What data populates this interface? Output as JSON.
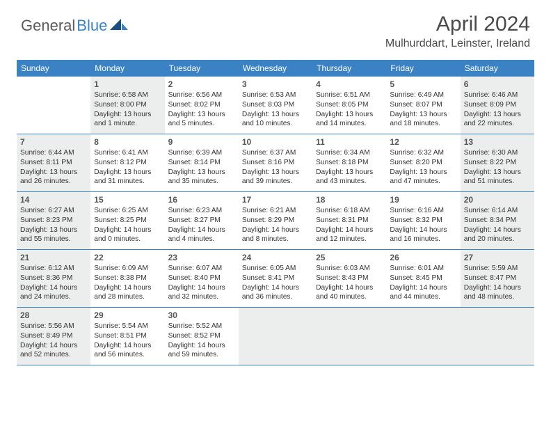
{
  "brand": {
    "part1": "General",
    "part2": "Blue"
  },
  "title": "April 2024",
  "location": "Mulhurddart, Leinster, Ireland",
  "colors": {
    "header_bg": "#3b82c4",
    "header_text": "#ffffff",
    "shaded_cell": "#eceded",
    "page_bg": "#ffffff",
    "text": "#333333",
    "title_text": "#4a4a4a"
  },
  "weekdays": [
    "Sunday",
    "Monday",
    "Tuesday",
    "Wednesday",
    "Thursday",
    "Friday",
    "Saturday"
  ],
  "weeks": [
    [
      {
        "num": "",
        "shaded": false,
        "sunrise": "",
        "sunset": "",
        "daylight": ""
      },
      {
        "num": "1",
        "shaded": true,
        "sunrise": "Sunrise: 6:58 AM",
        "sunset": "Sunset: 8:00 PM",
        "daylight": "Daylight: 13 hours and 1 minute."
      },
      {
        "num": "2",
        "shaded": false,
        "sunrise": "Sunrise: 6:56 AM",
        "sunset": "Sunset: 8:02 PM",
        "daylight": "Daylight: 13 hours and 5 minutes."
      },
      {
        "num": "3",
        "shaded": false,
        "sunrise": "Sunrise: 6:53 AM",
        "sunset": "Sunset: 8:03 PM",
        "daylight": "Daylight: 13 hours and 10 minutes."
      },
      {
        "num": "4",
        "shaded": false,
        "sunrise": "Sunrise: 6:51 AM",
        "sunset": "Sunset: 8:05 PM",
        "daylight": "Daylight: 13 hours and 14 minutes."
      },
      {
        "num": "5",
        "shaded": false,
        "sunrise": "Sunrise: 6:49 AM",
        "sunset": "Sunset: 8:07 PM",
        "daylight": "Daylight: 13 hours and 18 minutes."
      },
      {
        "num": "6",
        "shaded": true,
        "sunrise": "Sunrise: 6:46 AM",
        "sunset": "Sunset: 8:09 PM",
        "daylight": "Daylight: 13 hours and 22 minutes."
      }
    ],
    [
      {
        "num": "7",
        "shaded": true,
        "sunrise": "Sunrise: 6:44 AM",
        "sunset": "Sunset: 8:11 PM",
        "daylight": "Daylight: 13 hours and 26 minutes."
      },
      {
        "num": "8",
        "shaded": false,
        "sunrise": "Sunrise: 6:41 AM",
        "sunset": "Sunset: 8:12 PM",
        "daylight": "Daylight: 13 hours and 31 minutes."
      },
      {
        "num": "9",
        "shaded": false,
        "sunrise": "Sunrise: 6:39 AM",
        "sunset": "Sunset: 8:14 PM",
        "daylight": "Daylight: 13 hours and 35 minutes."
      },
      {
        "num": "10",
        "shaded": false,
        "sunrise": "Sunrise: 6:37 AM",
        "sunset": "Sunset: 8:16 PM",
        "daylight": "Daylight: 13 hours and 39 minutes."
      },
      {
        "num": "11",
        "shaded": false,
        "sunrise": "Sunrise: 6:34 AM",
        "sunset": "Sunset: 8:18 PM",
        "daylight": "Daylight: 13 hours and 43 minutes."
      },
      {
        "num": "12",
        "shaded": false,
        "sunrise": "Sunrise: 6:32 AM",
        "sunset": "Sunset: 8:20 PM",
        "daylight": "Daylight: 13 hours and 47 minutes."
      },
      {
        "num": "13",
        "shaded": true,
        "sunrise": "Sunrise: 6:30 AM",
        "sunset": "Sunset: 8:22 PM",
        "daylight": "Daylight: 13 hours and 51 minutes."
      }
    ],
    [
      {
        "num": "14",
        "shaded": true,
        "sunrise": "Sunrise: 6:27 AM",
        "sunset": "Sunset: 8:23 PM",
        "daylight": "Daylight: 13 hours and 55 minutes."
      },
      {
        "num": "15",
        "shaded": false,
        "sunrise": "Sunrise: 6:25 AM",
        "sunset": "Sunset: 8:25 PM",
        "daylight": "Daylight: 14 hours and 0 minutes."
      },
      {
        "num": "16",
        "shaded": false,
        "sunrise": "Sunrise: 6:23 AM",
        "sunset": "Sunset: 8:27 PM",
        "daylight": "Daylight: 14 hours and 4 minutes."
      },
      {
        "num": "17",
        "shaded": false,
        "sunrise": "Sunrise: 6:21 AM",
        "sunset": "Sunset: 8:29 PM",
        "daylight": "Daylight: 14 hours and 8 minutes."
      },
      {
        "num": "18",
        "shaded": false,
        "sunrise": "Sunrise: 6:18 AM",
        "sunset": "Sunset: 8:31 PM",
        "daylight": "Daylight: 14 hours and 12 minutes."
      },
      {
        "num": "19",
        "shaded": false,
        "sunrise": "Sunrise: 6:16 AM",
        "sunset": "Sunset: 8:32 PM",
        "daylight": "Daylight: 14 hours and 16 minutes."
      },
      {
        "num": "20",
        "shaded": true,
        "sunrise": "Sunrise: 6:14 AM",
        "sunset": "Sunset: 8:34 PM",
        "daylight": "Daylight: 14 hours and 20 minutes."
      }
    ],
    [
      {
        "num": "21",
        "shaded": true,
        "sunrise": "Sunrise: 6:12 AM",
        "sunset": "Sunset: 8:36 PM",
        "daylight": "Daylight: 14 hours and 24 minutes."
      },
      {
        "num": "22",
        "shaded": false,
        "sunrise": "Sunrise: 6:09 AM",
        "sunset": "Sunset: 8:38 PM",
        "daylight": "Daylight: 14 hours and 28 minutes."
      },
      {
        "num": "23",
        "shaded": false,
        "sunrise": "Sunrise: 6:07 AM",
        "sunset": "Sunset: 8:40 PM",
        "daylight": "Daylight: 14 hours and 32 minutes."
      },
      {
        "num": "24",
        "shaded": false,
        "sunrise": "Sunrise: 6:05 AM",
        "sunset": "Sunset: 8:41 PM",
        "daylight": "Daylight: 14 hours and 36 minutes."
      },
      {
        "num": "25",
        "shaded": false,
        "sunrise": "Sunrise: 6:03 AM",
        "sunset": "Sunset: 8:43 PM",
        "daylight": "Daylight: 14 hours and 40 minutes."
      },
      {
        "num": "26",
        "shaded": false,
        "sunrise": "Sunrise: 6:01 AM",
        "sunset": "Sunset: 8:45 PM",
        "daylight": "Daylight: 14 hours and 44 minutes."
      },
      {
        "num": "27",
        "shaded": true,
        "sunrise": "Sunrise: 5:59 AM",
        "sunset": "Sunset: 8:47 PM",
        "daylight": "Daylight: 14 hours and 48 minutes."
      }
    ],
    [
      {
        "num": "28",
        "shaded": true,
        "sunrise": "Sunrise: 5:56 AM",
        "sunset": "Sunset: 8:49 PM",
        "daylight": "Daylight: 14 hours and 52 minutes."
      },
      {
        "num": "29",
        "shaded": false,
        "sunrise": "Sunrise: 5:54 AM",
        "sunset": "Sunset: 8:51 PM",
        "daylight": "Daylight: 14 hours and 56 minutes."
      },
      {
        "num": "30",
        "shaded": false,
        "sunrise": "Sunrise: 5:52 AM",
        "sunset": "Sunset: 8:52 PM",
        "daylight": "Daylight: 14 hours and 59 minutes."
      },
      {
        "num": "",
        "shaded": true,
        "sunrise": "",
        "sunset": "",
        "daylight": ""
      },
      {
        "num": "",
        "shaded": true,
        "sunrise": "",
        "sunset": "",
        "daylight": ""
      },
      {
        "num": "",
        "shaded": true,
        "sunrise": "",
        "sunset": "",
        "daylight": ""
      },
      {
        "num": "",
        "shaded": true,
        "sunrise": "",
        "sunset": "",
        "daylight": ""
      }
    ]
  ]
}
